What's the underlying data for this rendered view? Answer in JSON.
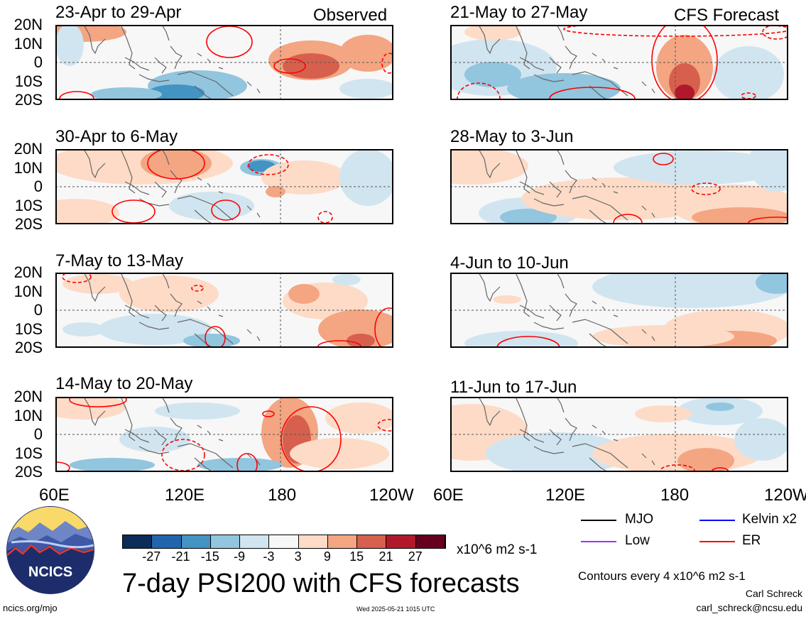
{
  "header": {
    "observed_label": "Observed",
    "forecast_label": "CFS Forecast"
  },
  "panels": {
    "observed": [
      {
        "title": "23-Apr to 29-Apr"
      },
      {
        "title": "30-Apr to 6-May"
      },
      {
        "title": "7-May to 13-May"
      },
      {
        "title": "14-May to 20-May"
      }
    ],
    "forecast": [
      {
        "title": "21-May to 27-May"
      },
      {
        "title": "28-May to 3-Jun"
      },
      {
        "title": "4-Jun to 10-Jun"
      },
      {
        "title": "11-Jun to 17-Jun"
      }
    ]
  },
  "axes": {
    "lat_labels": [
      "20N",
      "10N",
      "0",
      "10S",
      "20S"
    ],
    "lon_labels": [
      "60E",
      "120E",
      "180",
      "120W"
    ]
  },
  "colorbar": {
    "ticks": [
      "-27",
      "-21",
      "-15",
      "-9",
      "-3",
      "3",
      "9",
      "15",
      "21",
      "27"
    ],
    "colors": [
      "#0c2c5a",
      "#2166ac",
      "#4393c3",
      "#92c5de",
      "#d1e5f0",
      "#f7f7f7",
      "#fddbc7",
      "#f4a582",
      "#d6604d",
      "#b2182b",
      "#67001f"
    ],
    "units": "x10^6 m2 s-1"
  },
  "legend": {
    "items": [
      {
        "label": "MJO",
        "color": "#000000"
      },
      {
        "label": "Kelvin x2",
        "color": "#0000ff"
      },
      {
        "label": "Low",
        "color": "#9933ff"
      },
      {
        "label": "ER",
        "color": "#ff0000"
      }
    ],
    "contour_note": "Contours every 4 x10^6 m2 s-1"
  },
  "logo": {
    "text": "NCICS"
  },
  "footer": {
    "main_title": "7-day PSI200 with CFS forecasts",
    "url": "ncics.org/mjo",
    "timestamp": "Wed 2025-05-21 1015 UTC",
    "author": "Carl Schreck",
    "email": "carl_schreck@ncsu.edu"
  }
}
